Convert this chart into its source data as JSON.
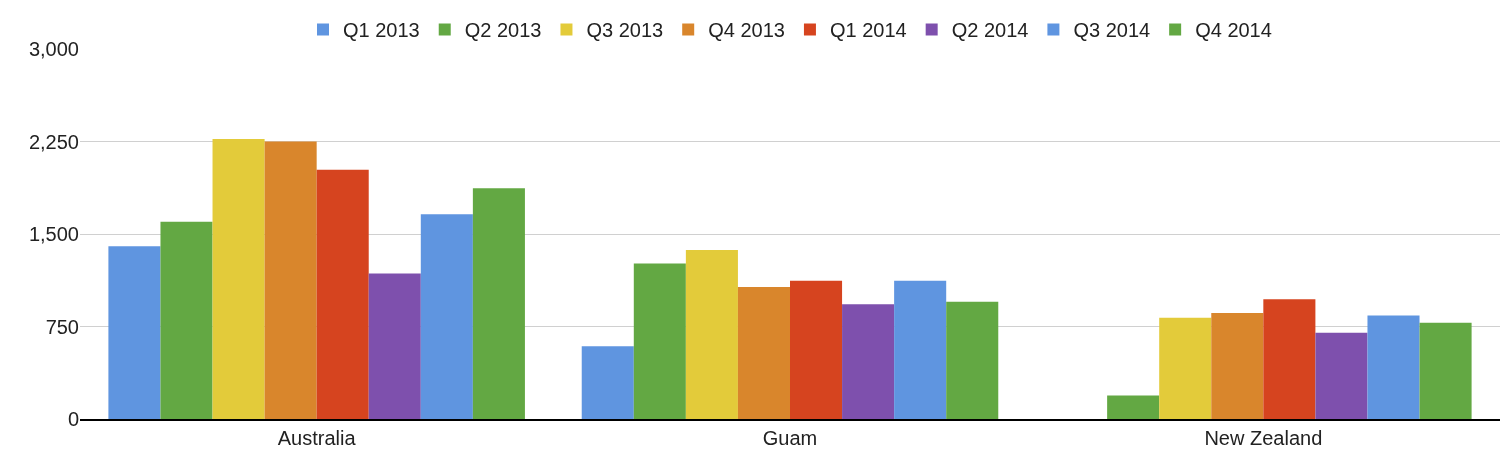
{
  "chart_data": {
    "type": "bar",
    "categories": [
      "Australia",
      "Guam",
      "New Zealand"
    ],
    "series": [
      {
        "name": "Q1 2013",
        "color": "#5f95e0",
        "values": [
          1400,
          590,
          null
        ]
      },
      {
        "name": "Q2 2013",
        "color": "#63a843",
        "values": [
          1600,
          1260,
          190
        ]
      },
      {
        "name": "Q3 2013",
        "color": "#e3cb3a",
        "values": [
          2270,
          1370,
          820
        ]
      },
      {
        "name": "Q4 2013",
        "color": "#d9862c",
        "values": [
          2250,
          1070,
          860
        ]
      },
      {
        "name": "Q1 2014",
        "color": "#d6441f",
        "values": [
          2020,
          1120,
          970
        ]
      },
      {
        "name": "Q2 2014",
        "color": "#7e50ad",
        "values": [
          1180,
          930,
          700
        ]
      },
      {
        "name": "Q3 2014",
        "color": "#5f95e0",
        "values": [
          1660,
          1120,
          840
        ]
      },
      {
        "name": "Q4 2014",
        "color": "#63a843",
        "values": [
          1870,
          950,
          780
        ]
      }
    ],
    "ylim": [
      0,
      3000
    ],
    "yticks": [
      {
        "value": 0,
        "label": "0"
      },
      {
        "value": 750,
        "label": "750"
      },
      {
        "value": 1500,
        "label": "1,500"
      },
      {
        "value": 2250,
        "label": "2,250"
      },
      {
        "value": 3000,
        "label": "3,000"
      }
    ],
    "grid": "y",
    "legend": "top"
  }
}
